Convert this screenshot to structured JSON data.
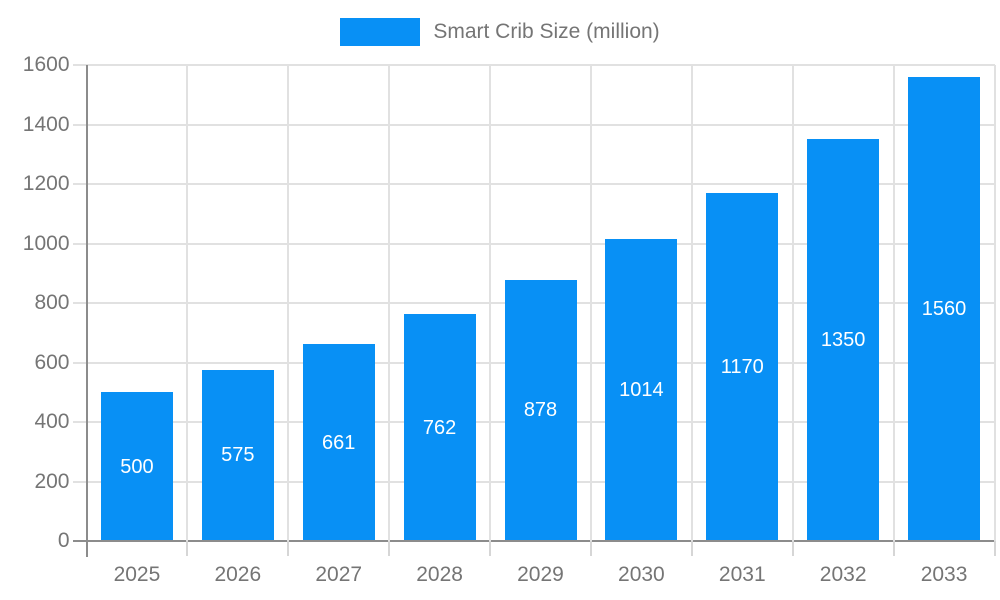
{
  "legend": {
    "label": "Smart Crib Size (million)"
  },
  "colors": {
    "bar": "#0890F5",
    "grid": "#E1E1E1",
    "axis": "#8C8C8C",
    "x_tick": "#D6D6D6",
    "tick_text": "#757575",
    "value_text": "#FFFFFF",
    "background": "#FFFFFF"
  },
  "chart_data": {
    "type": "bar",
    "title": "Smart Crib Size (million)",
    "categories": [
      "2025",
      "2026",
      "2027",
      "2028",
      "2029",
      "2030",
      "2031",
      "2032",
      "2033"
    ],
    "values": [
      500,
      575,
      661,
      762,
      878,
      1014,
      1170,
      1350,
      1560
    ],
    "series": [
      {
        "name": "Smart Crib Size (million)",
        "values": [
          500,
          575,
          661,
          762,
          878,
          1014,
          1170,
          1350,
          1560
        ]
      }
    ],
    "xlabel": "",
    "ylabel": "",
    "ylim": [
      0,
      1600
    ],
    "yticks": [
      0,
      200,
      400,
      600,
      800,
      1000,
      1200,
      1400,
      1600
    ],
    "grid": true,
    "legend_position": "top-center",
    "value_label_style": "inside-center-white"
  }
}
